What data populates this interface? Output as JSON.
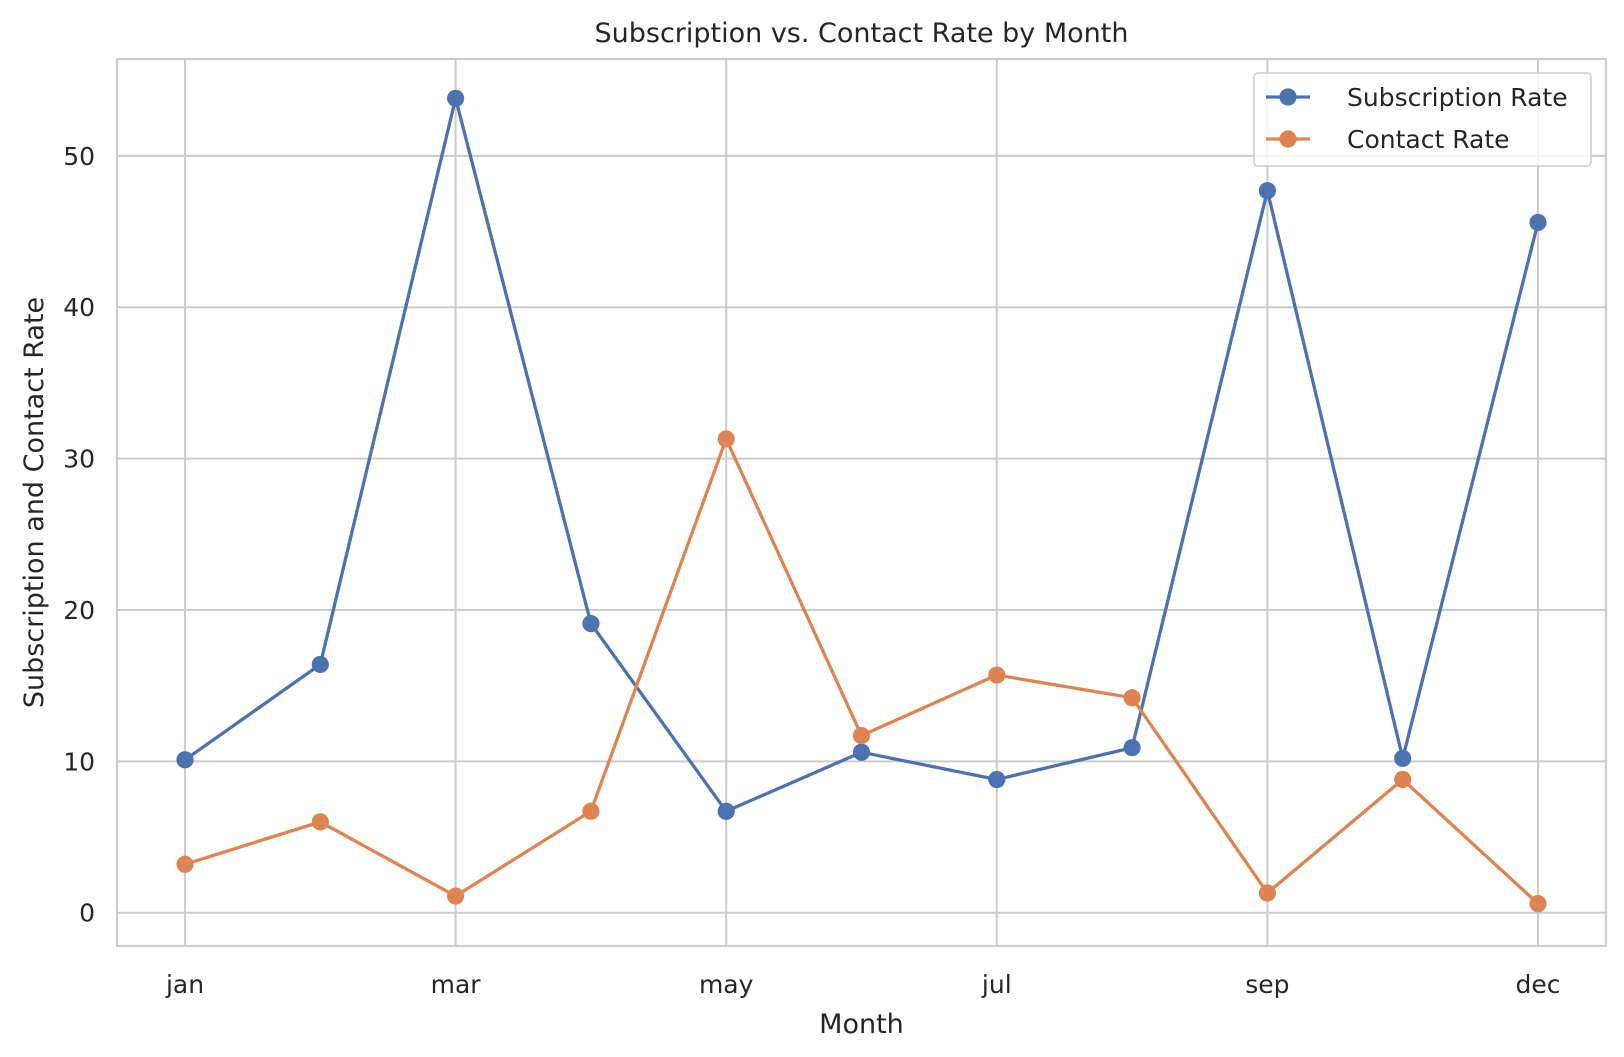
{
  "chart_data": {
    "type": "line",
    "title": "Subscription vs. Contact Rate by Month",
    "xlabel": "Month",
    "ylabel": "Subscription and Contact Rate",
    "x_tick_labels": [
      "jan",
      "",
      "mar",
      "",
      "may",
      "",
      "jul",
      "",
      "sep",
      "",
      "dec"
    ],
    "y_ticks": [
      0,
      10,
      20,
      30,
      40,
      50
    ],
    "ylim": [
      -2.2,
      56.4
    ],
    "grid": true,
    "legend_position": "top-right",
    "series": [
      {
        "name": "Subscription Rate",
        "color": "#4C72B0",
        "values": [
          10.1,
          16.4,
          53.8,
          19.1,
          6.7,
          10.6,
          8.8,
          10.9,
          47.7,
          10.2,
          45.6
        ]
      },
      {
        "name": "Contact Rate",
        "color": "#DD8452",
        "values": [
          3.2,
          6.0,
          1.1,
          6.7,
          31.3,
          11.7,
          15.7,
          14.2,
          1.3,
          8.8,
          0.6
        ]
      }
    ]
  }
}
